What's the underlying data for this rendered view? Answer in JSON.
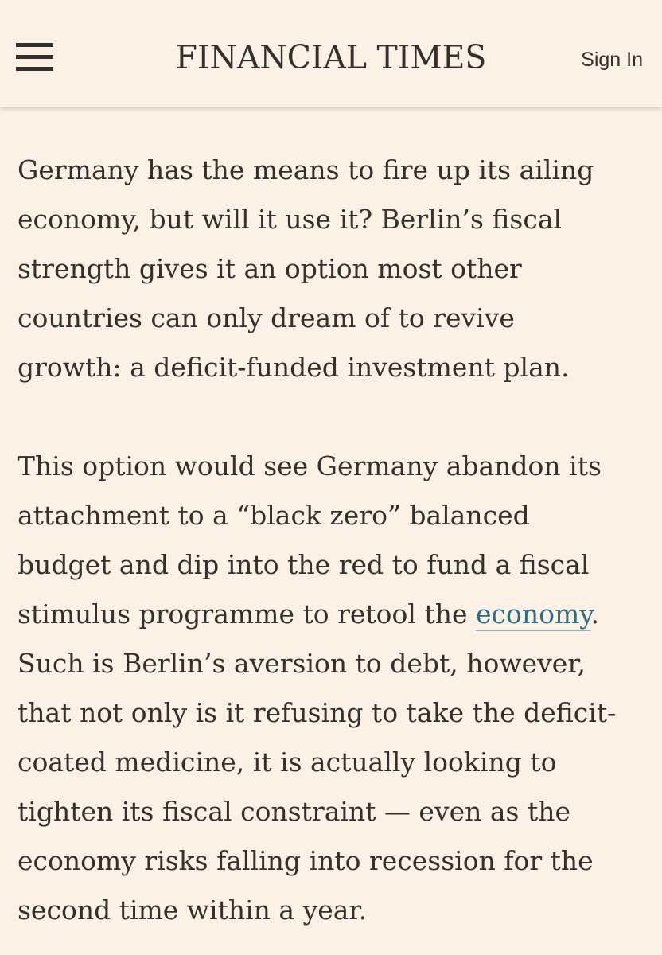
{
  "header": {
    "masthead": "FINANCIAL TIMES",
    "sign_in_label": "Sign In",
    "menu_icon": "hamburger-menu-icon"
  },
  "article": {
    "paragraph1": {
      "lines": [
        "Germany has the means to fire up its ailing",
        "economy, but will it use it? Berlin’s fiscal",
        "strength gives it an option most other",
        "countries can only dream of to revive",
        "growth: a deficit-funded investment plan."
      ]
    },
    "paragraph2": {
      "lines": [
        "This option would see Germany abandon its",
        "attachment to a “black zero” balanced",
        "budget and dip into the red to fund a fiscal",
        "stimulus programme to retool the ",
        "Such is Berlin’s aversion to debt, however,",
        "that not only is it refusing to take the deficit-",
        "coated medicine, it is actually looking to",
        "tighten its fiscal constraint — even as the",
        "economy risks falling into recession for the",
        "second time within a year."
      ],
      "link_text": "economy",
      "after_link": "."
    }
  },
  "colors": {
    "background": "#fdf1e5",
    "text": "#33302e",
    "link": "#2e6e85"
  }
}
